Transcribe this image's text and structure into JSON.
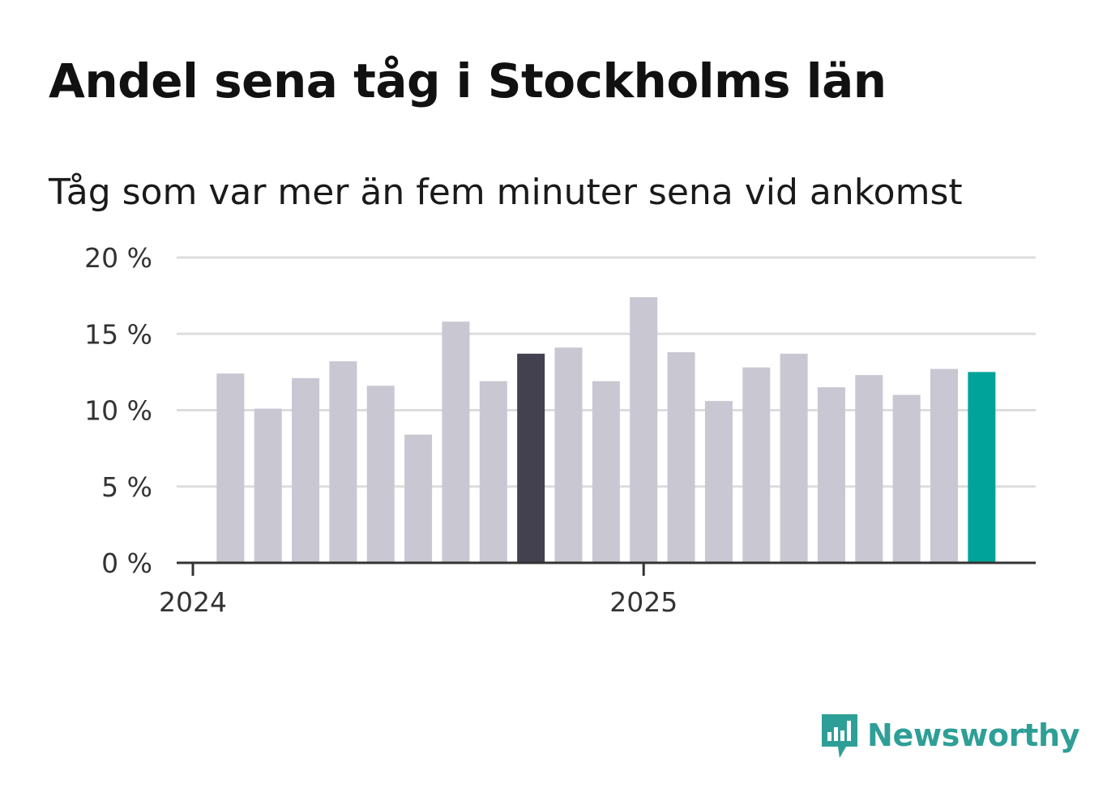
{
  "title": "Andel sena tåg i Stockholms län",
  "subtitle": "Tåg som var mer än fem minuter sena vid ankomst",
  "brand": {
    "name": "Newsworthy",
    "color": "#2e9f97"
  },
  "colors": {
    "default_bar": "#c8c7d2",
    "highlight_prev_year": "#43414f",
    "highlight_latest": "#00a398",
    "grid": "#dddddd",
    "axis": "#333333"
  },
  "chart_data": {
    "type": "bar",
    "title": "Andel sena tåg i Stockholms län",
    "subtitle": "Tåg som var mer än fem minuter sena vid ankomst",
    "unit": "%",
    "ylim": [
      0,
      20
    ],
    "yticks": [
      0,
      5,
      10,
      15,
      20
    ],
    "ytick_labels": [
      "0 %",
      "5 %",
      "10 %",
      "15 %",
      "20 %"
    ],
    "xtick_labels": [
      {
        "label": "2024",
        "category": "2024-01"
      },
      {
        "label": "2025",
        "category": "2025-01"
      }
    ],
    "categories": [
      "2024-02",
      "2024-03",
      "2024-04",
      "2024-05",
      "2024-06",
      "2024-07",
      "2024-08",
      "2024-09",
      "2024-10",
      "2024-11",
      "2024-12",
      "2025-01",
      "2025-02",
      "2025-03",
      "2025-04",
      "2025-05",
      "2025-06",
      "2025-07",
      "2025-08",
      "2025-09",
      "2025-10"
    ],
    "values": [
      12.4,
      10.1,
      12.1,
      13.2,
      11.6,
      8.4,
      15.8,
      11.9,
      13.7,
      14.1,
      11.9,
      17.4,
      13.8,
      10.6,
      12.8,
      13.7,
      11.5,
      12.3,
      11.0,
      12.7,
      12.5
    ],
    "highlight": {
      "2024-10": "highlight_prev_year",
      "2025-10": "highlight_latest"
    },
    "grid": true,
    "legend": "none"
  }
}
